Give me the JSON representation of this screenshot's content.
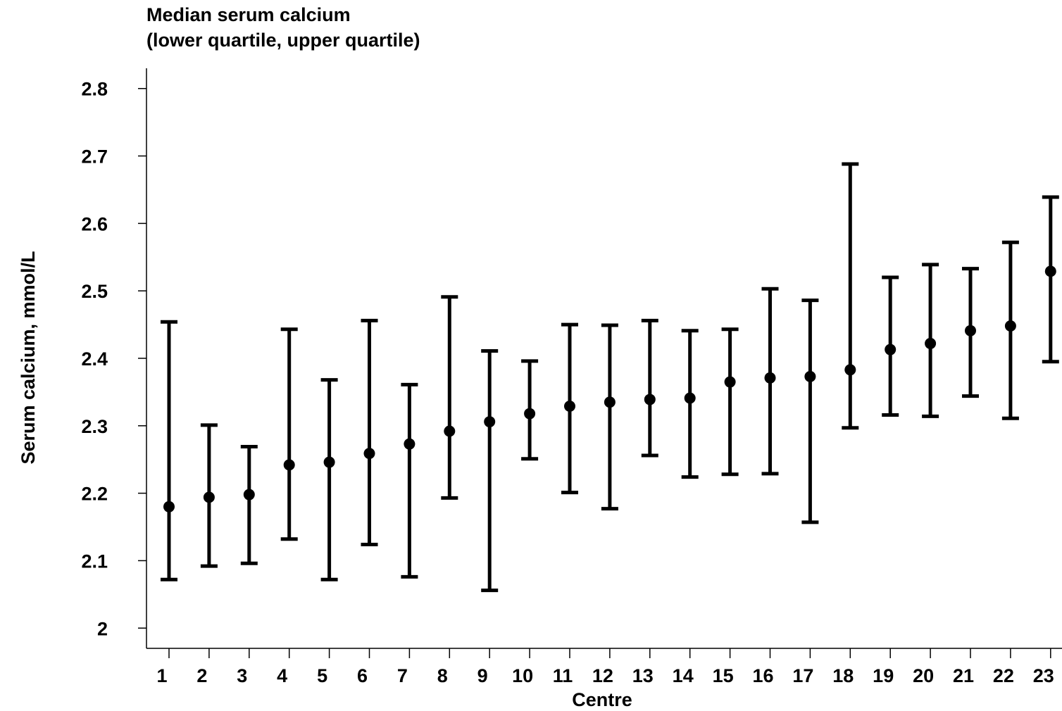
{
  "chart_data": {
    "type": "errorbar",
    "title": "Median serum calcium",
    "subtitle": "(lower quartile, upper quartile)",
    "x_label": "Centre",
    "y_label": "Serum calcium, mmol/L",
    "categories": [
      "1",
      "2",
      "3",
      "4",
      "5",
      "6",
      "7",
      "8",
      "9",
      "10",
      "11",
      "12",
      "13",
      "14",
      "15",
      "16",
      "17",
      "18",
      "19",
      "20",
      "21",
      "22",
      "23"
    ],
    "values": [
      2.18,
      2.194,
      2.198,
      2.242,
      2.246,
      2.259,
      2.273,
      2.292,
      2.306,
      2.318,
      2.329,
      2.335,
      2.339,
      2.341,
      2.365,
      2.371,
      2.373,
      2.383,
      2.413,
      2.422,
      2.441,
      2.448,
      2.529
    ],
    "lower": [
      2.072,
      2.092,
      2.096,
      2.132,
      2.072,
      2.124,
      2.076,
      2.193,
      2.056,
      2.251,
      2.201,
      2.177,
      2.256,
      2.224,
      2.228,
      2.229,
      2.157,
      2.297,
      2.316,
      2.314,
      2.344,
      2.311,
      2.395
    ],
    "upper": [
      2.454,
      2.301,
      2.269,
      2.443,
      2.368,
      2.456,
      2.361,
      2.491,
      2.411,
      2.396,
      2.45,
      2.449,
      2.456,
      2.441,
      2.443,
      2.503,
      2.486,
      2.688,
      2.52,
      2.539,
      2.533,
      2.572,
      2.639
    ],
    "color": "#000000",
    "ylim": [
      1.97,
      2.83
    ],
    "yticks": [
      2,
      2.1,
      2.2,
      2.3,
      2.4,
      2.5,
      2.6,
      2.7,
      2.8
    ]
  }
}
